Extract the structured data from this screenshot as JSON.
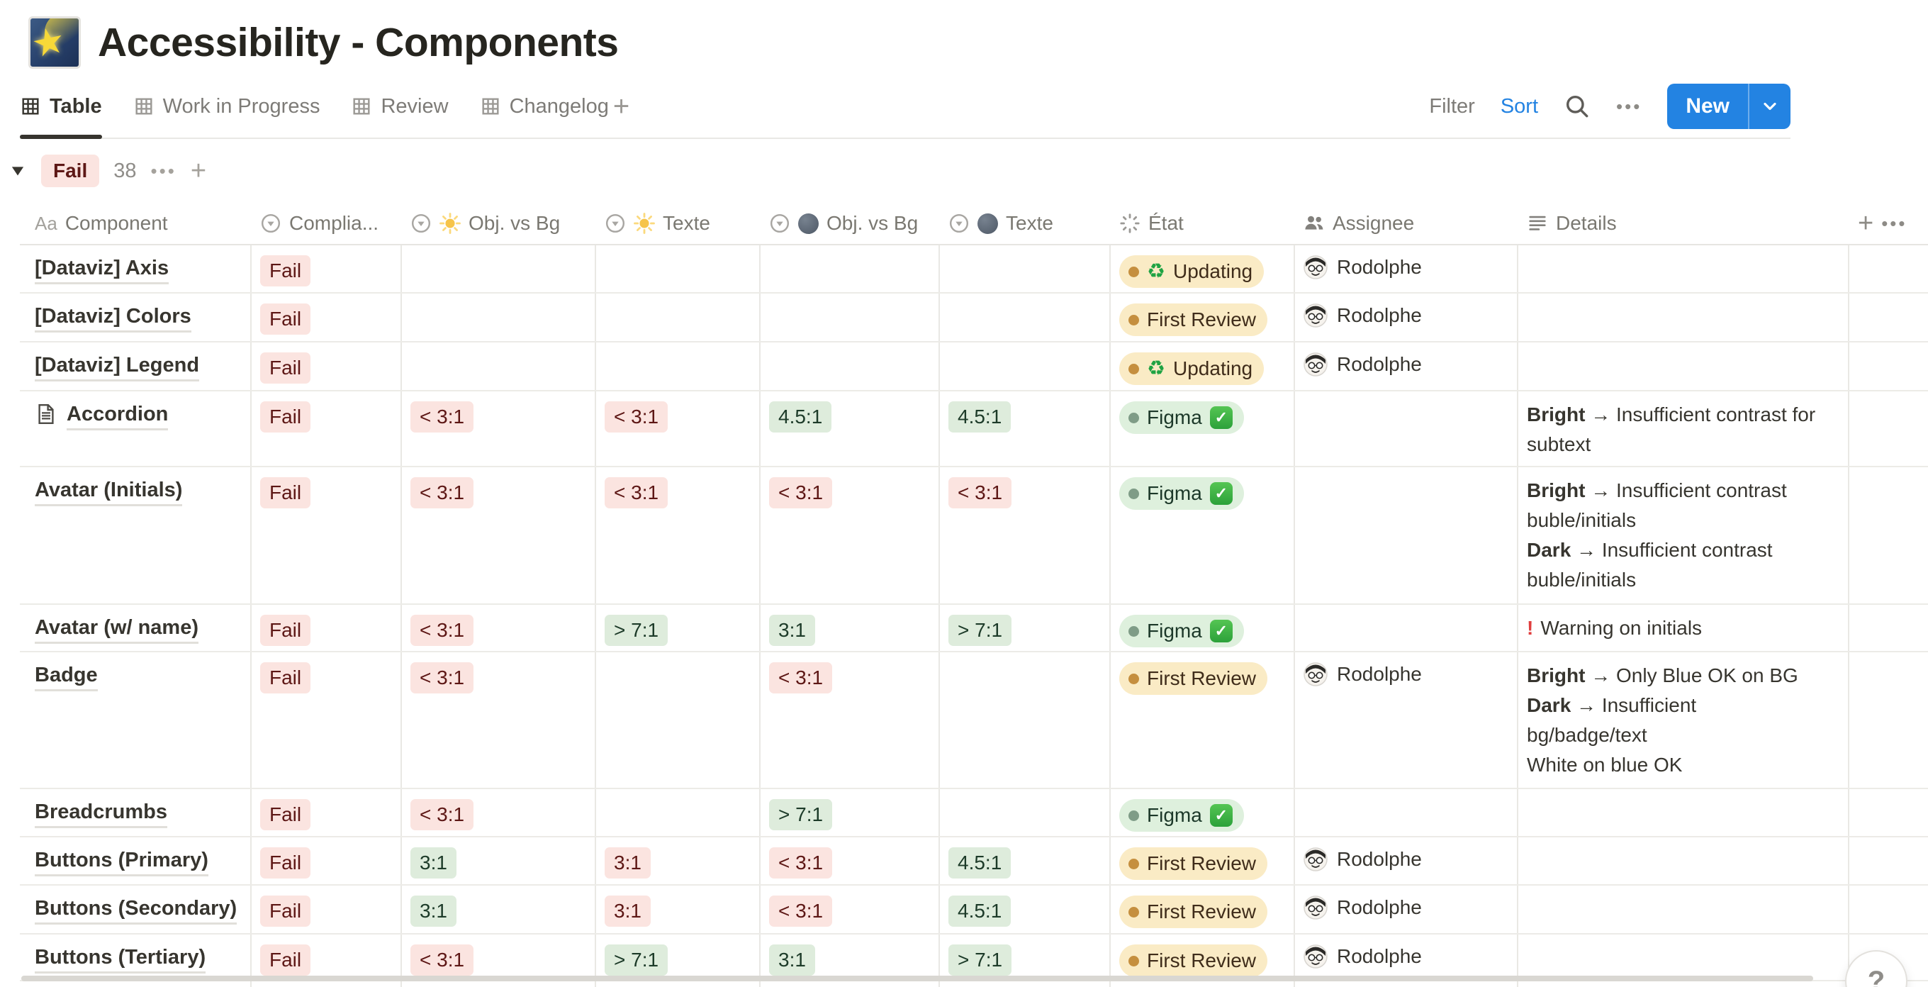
{
  "page": {
    "title": "Accessibility - Components",
    "icon": "shooting-star"
  },
  "view_tabs": [
    {
      "label": "Table",
      "active": true
    },
    {
      "label": "Work in Progress",
      "active": false
    },
    {
      "label": "Review",
      "active": false
    },
    {
      "label": "Changelog",
      "active": false
    }
  ],
  "toolbar": {
    "filter": "Filter",
    "sort": "Sort",
    "new": "New"
  },
  "group": {
    "label": "Fail",
    "count": "38"
  },
  "columns": [
    {
      "key": "component",
      "label": "Component",
      "icon": "title"
    },
    {
      "key": "compliance",
      "label": "Complia...",
      "icon": "select"
    },
    {
      "key": "sun_obj",
      "label": "Obj. vs Bg",
      "icon": "select",
      "emoji": "sun"
    },
    {
      "key": "sun_text",
      "label": "Texte",
      "icon": "select",
      "emoji": "sun"
    },
    {
      "key": "dark_obj",
      "label": "Obj. vs Bg",
      "icon": "select",
      "emoji": "dark-circle"
    },
    {
      "key": "dark_text",
      "label": "Texte",
      "icon": "select",
      "emoji": "dark-circle"
    },
    {
      "key": "etat",
      "label": "État",
      "icon": "status"
    },
    {
      "key": "assignee",
      "label": "Assignee",
      "icon": "people"
    },
    {
      "key": "details",
      "label": "Details",
      "icon": "text"
    }
  ],
  "rows": [
    {
      "component": "[Dataviz] Axis",
      "icon": null,
      "compliance": "Fail",
      "ratios": [
        null,
        null,
        null,
        null
      ],
      "etat": {
        "label": "Updating",
        "tone": "yellow",
        "emoji": "recycle"
      },
      "assignee": "Rodolphe",
      "details": []
    },
    {
      "component": "[Dataviz] Colors",
      "icon": null,
      "compliance": "Fail",
      "ratios": [
        null,
        null,
        null,
        null
      ],
      "etat": {
        "label": "First Review",
        "tone": "yellow",
        "emoji": null
      },
      "assignee": "Rodolphe",
      "details": []
    },
    {
      "component": "[Dataviz] Legend",
      "icon": null,
      "compliance": "Fail",
      "ratios": [
        null,
        null,
        null,
        null
      ],
      "etat": {
        "label": "Updating",
        "tone": "yellow",
        "emoji": "recycle"
      },
      "assignee": "Rodolphe",
      "details": []
    },
    {
      "component": "Accordion",
      "icon": "page",
      "compliance": "Fail",
      "ratios": [
        {
          "label": "< 3:1",
          "tone": "red"
        },
        {
          "label": "< 3:1",
          "tone": "red"
        },
        {
          "label": "4.5:1",
          "tone": "green"
        },
        {
          "label": "4.5:1",
          "tone": "green"
        }
      ],
      "etat": {
        "label": "Figma",
        "tone": "green",
        "emoji": "check"
      },
      "assignee": null,
      "details": [
        [
          {
            "text": "Bright",
            "bold": true
          },
          {
            "text": " → Insufficient contrast for"
          }
        ],
        [
          {
            "text": "subtext"
          }
        ]
      ]
    },
    {
      "component": "Avatar (Initials)",
      "icon": null,
      "compliance": "Fail",
      "ratios": [
        {
          "label": "< 3:1",
          "tone": "red"
        },
        {
          "label": "< 3:1",
          "tone": "red"
        },
        {
          "label": "< 3:1",
          "tone": "red"
        },
        {
          "label": "< 3:1",
          "tone": "red"
        }
      ],
      "etat": {
        "label": "Figma",
        "tone": "green",
        "emoji": "check"
      },
      "assignee": null,
      "details": [
        [
          {
            "text": "Bright",
            "bold": true
          },
          {
            "text": " → Insufficient contrast"
          }
        ],
        [
          {
            "text": "buble/initials"
          }
        ],
        [
          {
            "text": "Dark",
            "bold": true
          },
          {
            "text": " → Insufficient contrast"
          }
        ],
        [
          {
            "text": "buble/initials"
          }
        ]
      ]
    },
    {
      "component": "Avatar (w/ name)",
      "icon": null,
      "compliance": "Fail",
      "ratios": [
        {
          "label": "< 3:1",
          "tone": "red"
        },
        {
          "label": "> 7:1",
          "tone": "green"
        },
        {
          "label": "3:1",
          "tone": "green"
        },
        {
          "label": "> 7:1",
          "tone": "green"
        }
      ],
      "etat": {
        "label": "Figma",
        "tone": "green",
        "emoji": "check"
      },
      "assignee": null,
      "details": [
        [
          {
            "icon": "warning"
          },
          {
            "text": "Warning on initials"
          }
        ]
      ]
    },
    {
      "component": "Badge",
      "icon": null,
      "compliance": "Fail",
      "ratios": [
        {
          "label": "< 3:1",
          "tone": "red"
        },
        null,
        {
          "label": "< 3:1",
          "tone": "red"
        },
        null
      ],
      "etat": {
        "label": "First Review",
        "tone": "yellow",
        "emoji": null
      },
      "assignee": "Rodolphe",
      "details": [
        [
          {
            "text": "Bright",
            "bold": true
          },
          {
            "text": " → Only Blue OK on BG"
          }
        ],
        [
          {
            "text": "Dark",
            "bold": true
          },
          {
            "text": " → Insufficient"
          }
        ],
        [
          {
            "text": "bg/badge/text"
          }
        ],
        [
          {
            "text": "White on blue OK"
          }
        ]
      ]
    },
    {
      "component": "Breadcrumbs",
      "icon": null,
      "compliance": "Fail",
      "ratios": [
        {
          "label": "< 3:1",
          "tone": "red"
        },
        null,
        {
          "label": "> 7:1",
          "tone": "green"
        },
        null
      ],
      "etat": {
        "label": "Figma",
        "tone": "green",
        "emoji": "check"
      },
      "assignee": null,
      "details": []
    },
    {
      "component": "Buttons (Primary)",
      "icon": null,
      "compliance": "Fail",
      "ratios": [
        {
          "label": "3:1",
          "tone": "green"
        },
        {
          "label": "3:1",
          "tone": "red"
        },
        {
          "label": "< 3:1",
          "tone": "red"
        },
        {
          "label": "4.5:1",
          "tone": "green"
        }
      ],
      "etat": {
        "label": "First Review",
        "tone": "yellow",
        "emoji": null
      },
      "assignee": "Rodolphe",
      "details": []
    },
    {
      "component": "Buttons (Secondary)",
      "icon": null,
      "compliance": "Fail",
      "ratios": [
        {
          "label": "3:1",
          "tone": "green"
        },
        {
          "label": "3:1",
          "tone": "red"
        },
        {
          "label": "< 3:1",
          "tone": "red"
        },
        {
          "label": "4.5:1",
          "tone": "green"
        }
      ],
      "etat": {
        "label": "First Review",
        "tone": "yellow",
        "emoji": null
      },
      "assignee": "Rodolphe",
      "details": []
    },
    {
      "component": "Buttons (Tertiary)",
      "icon": null,
      "compliance": "Fail",
      "ratios": [
        {
          "label": "< 3:1",
          "tone": "red"
        },
        {
          "label": "> 7:1",
          "tone": "green"
        },
        {
          "label": "3:1",
          "tone": "green"
        },
        {
          "label": "> 7:1",
          "tone": "green"
        }
      ],
      "etat": {
        "label": "First Review",
        "tone": "yellow",
        "emoji": null
      },
      "assignee": "Rodolphe",
      "details": []
    }
  ],
  "help_label": "?",
  "colors": {
    "accent_blue": "#2383E2",
    "tag_red_bg": "#FBE4E0",
    "tag_red_text": "#5D1715",
    "tag_green_bg": "#DEECDC",
    "tag_green_text": "#1D3B29",
    "status_yellow_bg": "#FAEBC5",
    "status_yellow_dot": "#C58F3F",
    "status_green_bg": "#DEF0DD",
    "status_green_dot": "#7F9C87",
    "warning_red": "#E03E3E"
  }
}
